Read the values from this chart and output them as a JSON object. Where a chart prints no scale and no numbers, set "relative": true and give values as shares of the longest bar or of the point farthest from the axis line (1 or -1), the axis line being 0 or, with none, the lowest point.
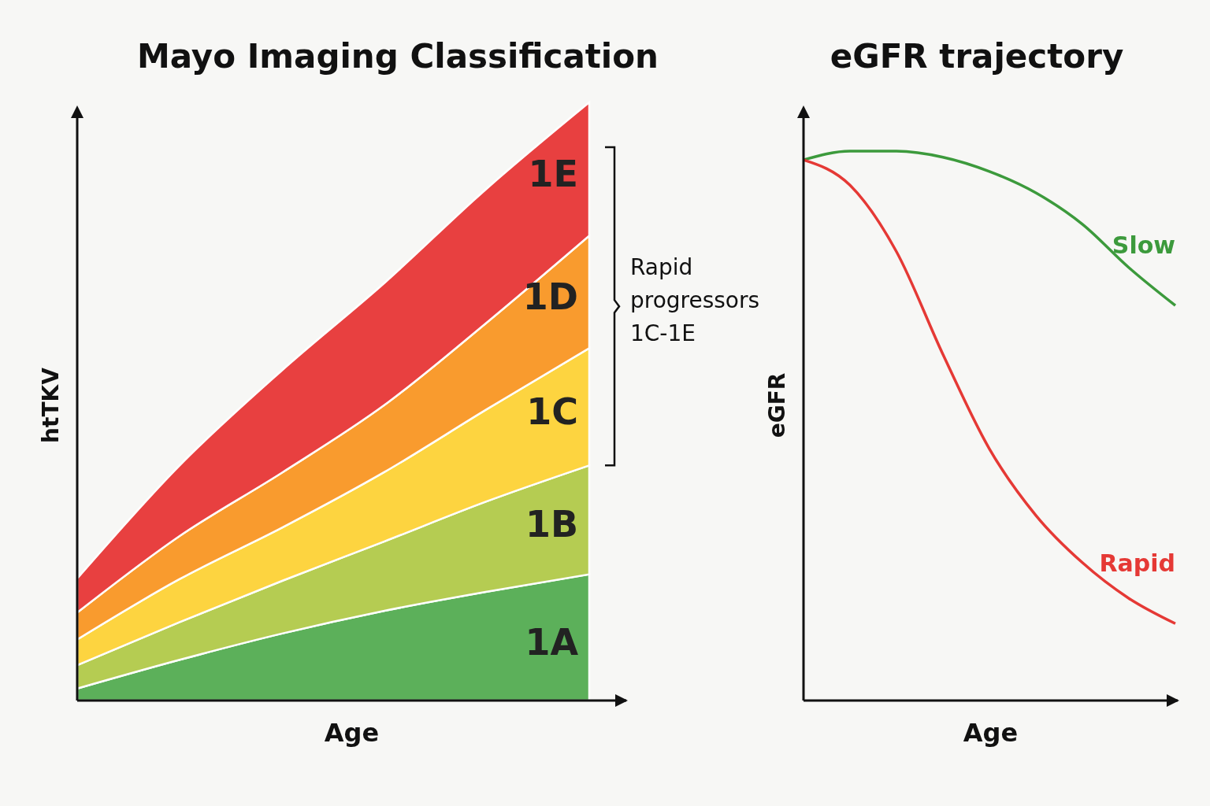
{
  "chart_data": [
    {
      "type": "area",
      "title": "Mayo Imaging Classification",
      "xlabel": "Age",
      "ylabel": "htTKV",
      "relative": true,
      "stacked": true,
      "categories": [
        null,
        null,
        null,
        null,
        null,
        null
      ],
      "annotations": [
        "Rapid progressors 1C-1E"
      ],
      "series": [
        {
          "name": "1A",
          "color": "#5cb05a",
          "values": [
            0.02,
            0.068,
            0.112,
            0.15,
            0.182,
            0.211
          ]
        },
        {
          "name": "1B",
          "color": "#b5cc52",
          "values": [
            0.039,
            0.063,
            0.088,
            0.116,
            0.151,
            0.182
          ]
        },
        {
          "name": "1C",
          "color": "#fdd440",
          "values": [
            0.043,
            0.072,
            0.089,
            0.116,
            0.154,
            0.196
          ]
        },
        {
          "name": "1D",
          "color": "#f99b2e",
          "values": [
            0.045,
            0.072,
            0.092,
            0.112,
            0.145,
            0.188
          ]
        },
        {
          "name": "1E",
          "color": "#e84040",
          "values": [
            0.057,
            0.118,
            0.171,
            0.204,
            0.224,
            0.223
          ]
        }
      ]
    },
    {
      "type": "line",
      "title": "eGFR trajectory",
      "xlabel": "Age",
      "ylabel": "eGFR",
      "relative": true,
      "marker": "none",
      "categories": [
        null,
        null,
        null,
        null,
        null,
        null,
        null,
        null,
        null
      ],
      "series": [
        {
          "name": "Slow",
          "color": "#3c9a3c",
          "values": [
            0.984,
            1.0,
            1.0,
            0.989,
            0.963,
            0.924,
            0.867,
            0.788,
            0.719
          ]
        },
        {
          "name": "Rapid",
          "color": "#e53935",
          "values": [
            0.984,
            0.938,
            0.817,
            0.63,
            0.458,
            0.337,
            0.251,
            0.186,
            0.14
          ]
        }
      ]
    }
  ]
}
